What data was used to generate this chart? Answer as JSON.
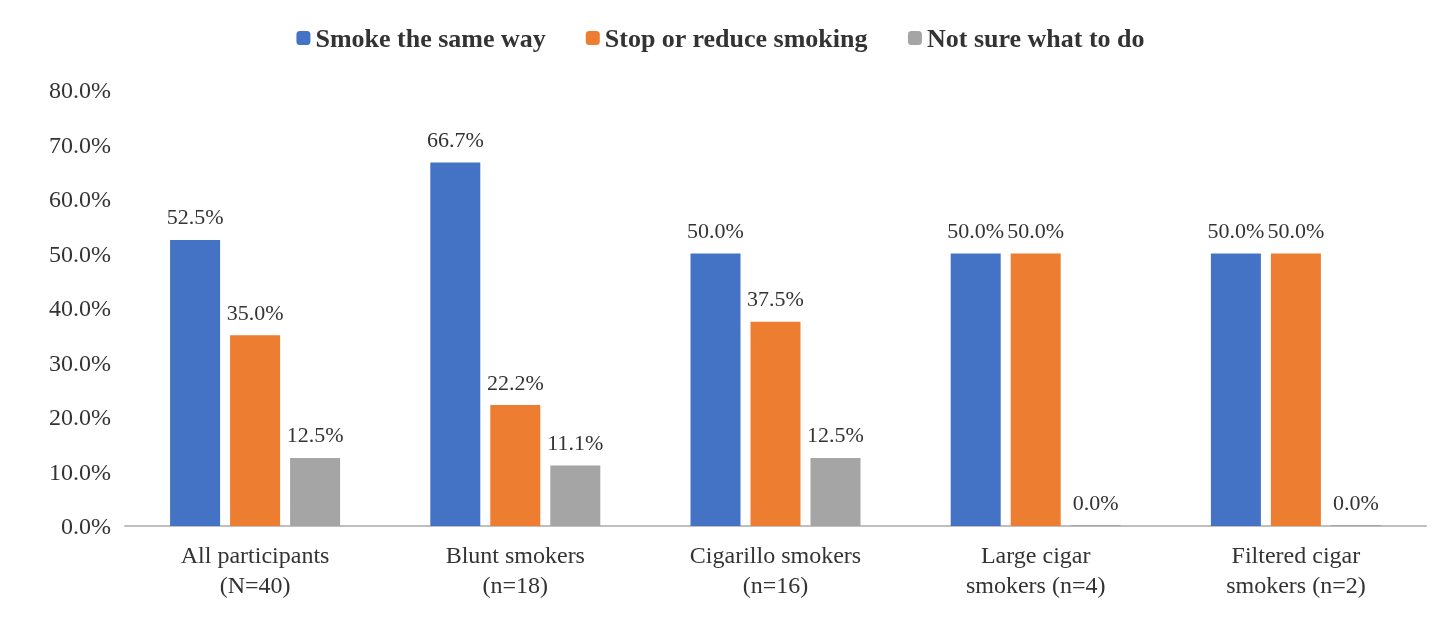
{
  "chart_data": {
    "type": "bar",
    "categories": [
      "All participants\n(N=40)",
      "Blunt smokers\n(n=18)",
      "Cigarillo smokers\n(n=16)",
      "Large cigar\nsmokers (n=4)",
      "Filtered cigar\nsmokers (n=2)"
    ],
    "series": [
      {
        "name": "Smoke the same way",
        "color": "#4472c4",
        "values": [
          52.5,
          66.7,
          50.0,
          50.0,
          50.0
        ],
        "value_labels": [
          "52.5%",
          "66.7%",
          "50.0%",
          "50.0%",
          "50.0%"
        ]
      },
      {
        "name": "Stop or reduce smoking",
        "color": "#ed7d31",
        "values": [
          35.0,
          22.2,
          37.5,
          50.0,
          50.0
        ],
        "value_labels": [
          "35.0%",
          "22.2%",
          "37.5%",
          "50.0%",
          "50.0%"
        ]
      },
      {
        "name": "Not sure what to do",
        "color": "#a5a5a5",
        "values": [
          12.5,
          11.1,
          12.5,
          0.0,
          0.0
        ],
        "value_labels": [
          "12.5%",
          "11.1%",
          "12.5%",
          "0.0%",
          "0.0%"
        ]
      }
    ],
    "ylim": [
      0,
      80
    ],
    "yticks": [
      {
        "value": 0,
        "label": "0.0%"
      },
      {
        "value": 10,
        "label": "10.0%"
      },
      {
        "value": 20,
        "label": "20.0%"
      },
      {
        "value": 30,
        "label": "30.0%"
      },
      {
        "value": 40,
        "label": "40.0%"
      },
      {
        "value": 50,
        "label": "50.0%"
      },
      {
        "value": 60,
        "label": "60.0%"
      },
      {
        "value": 70,
        "label": "70.0%"
      },
      {
        "value": 80,
        "label": "80.0%"
      }
    ],
    "grid": false,
    "legend": "top"
  }
}
